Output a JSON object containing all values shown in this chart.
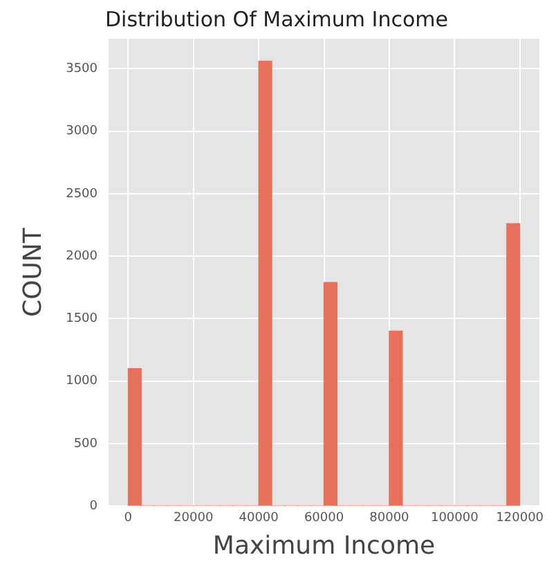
{
  "chart_data": {
    "type": "histogram",
    "title": "Distribution Of Maximum Income",
    "xlabel": "Maximum Income",
    "ylabel": "COUNT",
    "bins": [
      0,
      4000,
      8000,
      12000,
      16000,
      20000,
      24000,
      28000,
      32000,
      36000,
      40000,
      44000,
      48000,
      52000,
      56000,
      60000,
      64000,
      68000,
      72000,
      76000,
      80000,
      84000,
      88000,
      92000,
      96000,
      100000,
      104000,
      108000,
      112000,
      116000,
      120000
    ],
    "values": [
      1100,
      0,
      0,
      0,
      0,
      0,
      0,
      0,
      0,
      0,
      3560,
      0,
      0,
      0,
      0,
      1790,
      0,
      0,
      0,
      0,
      1400,
      0,
      0,
      0,
      0,
      0,
      0,
      0,
      0,
      2260
    ],
    "color": "#e5705c",
    "xlim": [
      -6000,
      126000
    ],
    "xticks": [
      0,
      20000,
      40000,
      60000,
      80000,
      100000,
      120000
    ],
    "ylim": [
      0,
      3740
    ],
    "yticks": [
      0,
      500,
      1000,
      1500,
      2000,
      2500,
      3000,
      3500
    ],
    "grid": true,
    "legend": false
  }
}
